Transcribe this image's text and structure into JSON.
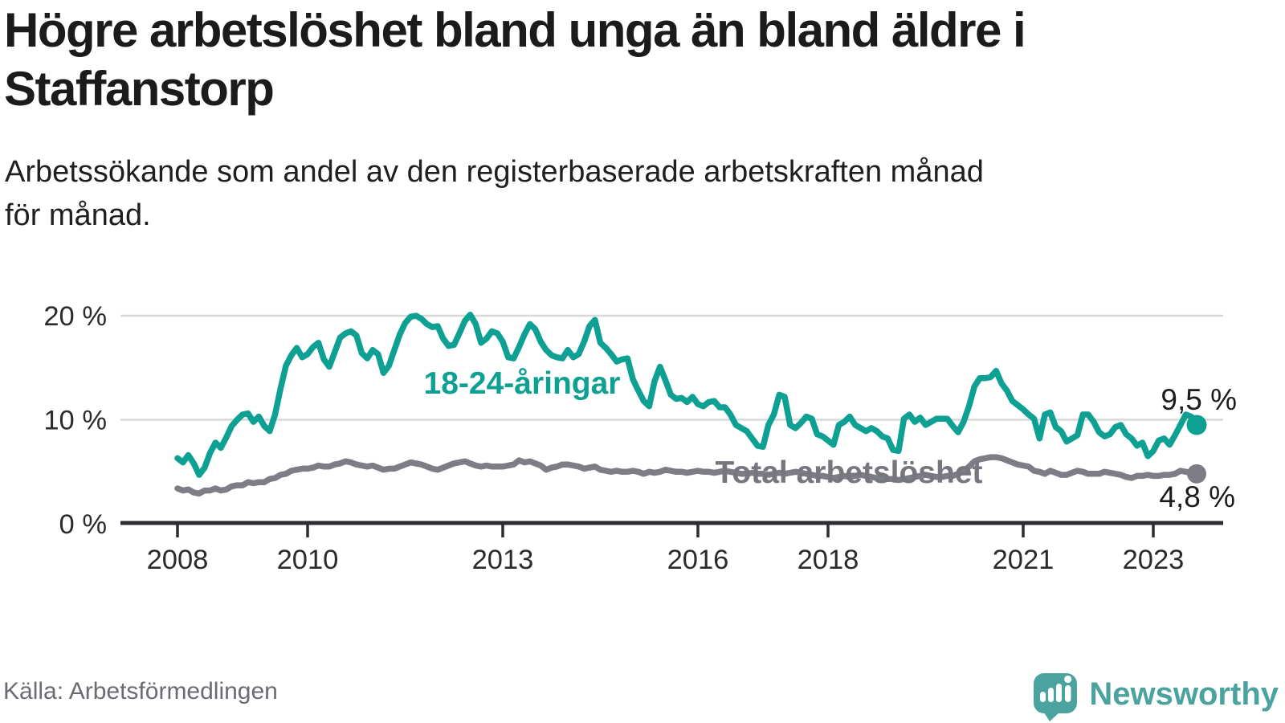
{
  "header": {
    "title": "Högre arbetslöshet bland unga än bland äldre i\nStaffanstorp",
    "subtitle": "Arbetssökande som andel av den registerbaserade arbetskraften månad\nför månad."
  },
  "footer": {
    "source": "Källa: Arbetsförmedlingen",
    "brand": "Newsworthy"
  },
  "colors": {
    "young_series": "#0da093",
    "total_series": "#7d7d85",
    "total_label": "#76767e",
    "axis": "#2d2d33",
    "grid": "#d8d8d8",
    "tick_text": "#2b2b2b",
    "value_text": "#1c1c1c",
    "brand_teal": "#4aa39f"
  },
  "chart_data": {
    "type": "line",
    "unit": "%",
    "x_start": "2008-01",
    "x_end": "2023-09",
    "x_frequency": "monthly",
    "ylim": [
      0,
      21.5
    ],
    "grid": true,
    "y_ticks": [
      {
        "value": 0,
        "label": "0 %"
      },
      {
        "value": 10,
        "label": "10 %"
      },
      {
        "value": 20,
        "label": "20 %"
      }
    ],
    "x_ticks": [
      {
        "label": "2008",
        "month_index": 0
      },
      {
        "label": "2010",
        "month_index": 24
      },
      {
        "label": "2013",
        "month_index": 60
      },
      {
        "label": "2016",
        "month_index": 96
      },
      {
        "label": "2018",
        "month_index": 120
      },
      {
        "label": "2021",
        "month_index": 156
      },
      {
        "label": "2023",
        "month_index": 180
      }
    ],
    "series": [
      {
        "name": "18-24-åringar",
        "color": "#0da093",
        "label_color": "#0da093",
        "end_label": "9,5 %",
        "end_value": 9.5,
        "values": [
          6.3,
          5.9,
          6.6,
          5.8,
          4.7,
          5.4,
          6.8,
          7.8,
          7.3,
          8.3,
          9.4,
          10.0,
          10.5,
          10.6,
          9.8,
          10.3,
          9.4,
          8.9,
          10.5,
          13.0,
          15.2,
          16.2,
          16.9,
          16.0,
          16.3,
          17.0,
          17.4,
          15.8,
          15.1,
          16.5,
          17.9,
          18.3,
          18.5,
          18.1,
          16.4,
          15.9,
          16.7,
          16.3,
          14.5,
          15.2,
          16.7,
          18.2,
          19.3,
          19.9,
          20.0,
          19.7,
          19.2,
          18.9,
          19.0,
          17.8,
          17.1,
          17.2,
          18.3,
          19.5,
          20.1,
          19.2,
          17.4,
          17.8,
          18.5,
          18.3,
          17.5,
          16.0,
          15.9,
          17.0,
          18.2,
          19.2,
          18.7,
          17.5,
          16.7,
          16.2,
          16.0,
          15.9,
          16.7,
          16.0,
          16.3,
          17.5,
          19.0,
          19.6,
          17.4,
          16.9,
          16.3,
          15.6,
          15.8,
          15.9,
          13.9,
          12.8,
          11.8,
          11.3,
          13.7,
          15.1,
          13.8,
          12.4,
          12.0,
          12.1,
          11.7,
          12.2,
          11.5,
          11.3,
          11.7,
          11.8,
          11.2,
          11.2,
          10.5,
          9.5,
          9.2,
          8.9,
          8.2,
          7.5,
          7.4,
          9.5,
          10.5,
          12.4,
          12.2,
          9.5,
          9.2,
          9.7,
          10.3,
          10.1,
          8.6,
          8.4,
          8.0,
          7.6,
          9.5,
          9.8,
          10.3,
          9.5,
          9.2,
          8.9,
          9.2,
          8.9,
          8.4,
          8.2,
          7.1,
          7.0,
          10.1,
          10.5,
          9.8,
          10.2,
          9.5,
          9.8,
          10.1,
          10.1,
          10.1,
          9.4,
          8.8,
          9.8,
          11.3,
          13.2,
          14.0,
          14.0,
          14.1,
          14.7,
          13.5,
          12.8,
          11.8,
          11.4,
          11.0,
          10.5,
          10.1,
          8.2,
          10.5,
          10.7,
          9.3,
          8.9,
          7.9,
          8.2,
          8.5,
          10.5,
          10.5,
          9.8,
          8.8,
          8.4,
          8.6,
          9.3,
          9.5,
          8.6,
          8.2,
          7.5,
          7.8,
          6.5,
          7.0,
          8.0,
          8.2,
          7.6,
          8.5,
          9.5,
          10.5,
          10.3,
          9.5
        ]
      },
      {
        "name": "Total arbetslöshet",
        "color": "#7d7d85",
        "label_color": "#76767e",
        "end_label": "4,8 %",
        "end_value": 4.8,
        "values": [
          3.4,
          3.2,
          3.3,
          3.0,
          2.9,
          3.2,
          3.2,
          3.4,
          3.2,
          3.3,
          3.6,
          3.7,
          3.7,
          4.0,
          3.9,
          4.0,
          4.0,
          4.3,
          4.4,
          4.7,
          4.8,
          5.1,
          5.2,
          5.3,
          5.3,
          5.4,
          5.6,
          5.5,
          5.5,
          5.7,
          5.8,
          6.0,
          5.9,
          5.7,
          5.6,
          5.5,
          5.6,
          5.4,
          5.2,
          5.3,
          5.3,
          5.5,
          5.7,
          5.9,
          5.8,
          5.7,
          5.5,
          5.3,
          5.2,
          5.4,
          5.6,
          5.8,
          5.9,
          6.0,
          5.8,
          5.6,
          5.5,
          5.6,
          5.5,
          5.5,
          5.5,
          5.6,
          5.7,
          6.1,
          5.9,
          6.0,
          5.8,
          5.6,
          5.2,
          5.4,
          5.5,
          5.7,
          5.7,
          5.6,
          5.5,
          5.3,
          5.4,
          5.5,
          5.2,
          5.1,
          5.0,
          5.1,
          5.0,
          5.0,
          5.1,
          5.0,
          4.8,
          5.0,
          4.9,
          5.0,
          5.2,
          5.1,
          5.0,
          5.0,
          4.9,
          5.0,
          5.1,
          5.0,
          5.0,
          4.9,
          5.0,
          5.1,
          5.0,
          4.9,
          4.8,
          4.8,
          4.9,
          4.8,
          4.8,
          4.7,
          4.8,
          4.9,
          4.8,
          4.9,
          5.0,
          4.9,
          4.8,
          4.7,
          4.6,
          4.6,
          4.5,
          4.4,
          4.5,
          4.6,
          4.5,
          4.6,
          4.7,
          4.6,
          4.5,
          4.4,
          4.4,
          4.3,
          4.3,
          4.2,
          4.3,
          4.4,
          4.5,
          4.6,
          4.7,
          4.6,
          4.5,
          4.5,
          4.6,
          4.6,
          4.8,
          5.0,
          5.5,
          6.0,
          6.2,
          6.3,
          6.4,
          6.4,
          6.3,
          6.1,
          5.9,
          5.7,
          5.6,
          5.5,
          5.1,
          5.0,
          4.8,
          5.1,
          4.9,
          4.7,
          4.7,
          4.9,
          5.1,
          5.0,
          4.8,
          4.8,
          4.8,
          5.0,
          4.9,
          4.8,
          4.7,
          4.5,
          4.4,
          4.6,
          4.6,
          4.7,
          4.6,
          4.6,
          4.7,
          4.7,
          4.8,
          5.1,
          5.0,
          4.9,
          4.8
        ]
      }
    ]
  }
}
